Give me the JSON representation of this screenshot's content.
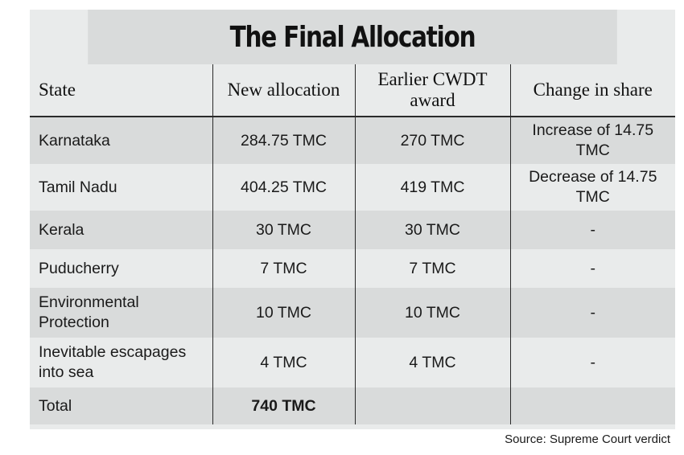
{
  "title": "The Final Allocation",
  "headers": {
    "state": "State",
    "new_allocation": "New allocation",
    "earlier_award": "Earlier CWDT award",
    "change": "Change in share"
  },
  "rows": [
    {
      "state": "Karnataka",
      "new": "284.75 TMC",
      "earlier": "270 TMC",
      "change": "Increase of 14.75 TMC"
    },
    {
      "state": "Tamil Nadu",
      "new": "404.25 TMC",
      "earlier": "419 TMC",
      "change": "Decrease of 14.75 TMC"
    },
    {
      "state": "Kerala",
      "new": "30 TMC",
      "earlier": "30 TMC",
      "change": "-"
    },
    {
      "state": "Puducherry",
      "new": "7 TMC",
      "earlier": "7 TMC",
      "change": "-"
    },
    {
      "state": "Environmental Protection",
      "new": "10 TMC",
      "earlier": "10 TMC",
      "change": "-"
    },
    {
      "state": "Inevitable escapages into sea",
      "new": "4 TMC",
      "earlier": "4 TMC",
      "change": "-"
    }
  ],
  "total": {
    "label": "Total",
    "new": "740 TMC",
    "earlier": "",
    "change": ""
  },
  "source": "Source: Supreme Court verdict"
}
